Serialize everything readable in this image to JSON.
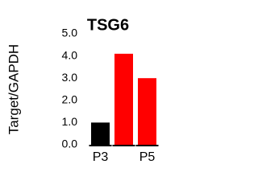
{
  "chart_data": {
    "type": "bar",
    "title": "TSG6",
    "y_label": "Target/GAPDH",
    "categories": [
      "P3",
      null,
      "P5"
    ],
    "values": [
      1.0,
      4.1,
      3.0
    ],
    "colors": [
      "#000000",
      "#ff0000",
      "#ff0000"
    ],
    "ylim": [
      0,
      5
    ],
    "yticks": [
      {
        "value": 0,
        "label": "0.0"
      },
      {
        "value": 1,
        "label": "1.0"
      },
      {
        "value": 2,
        "label": "2.0"
      },
      {
        "value": 3,
        "label": "3.0"
      },
      {
        "value": 4,
        "label": "4.0"
      },
      {
        "value": 5,
        "label": "5.0"
      }
    ]
  }
}
